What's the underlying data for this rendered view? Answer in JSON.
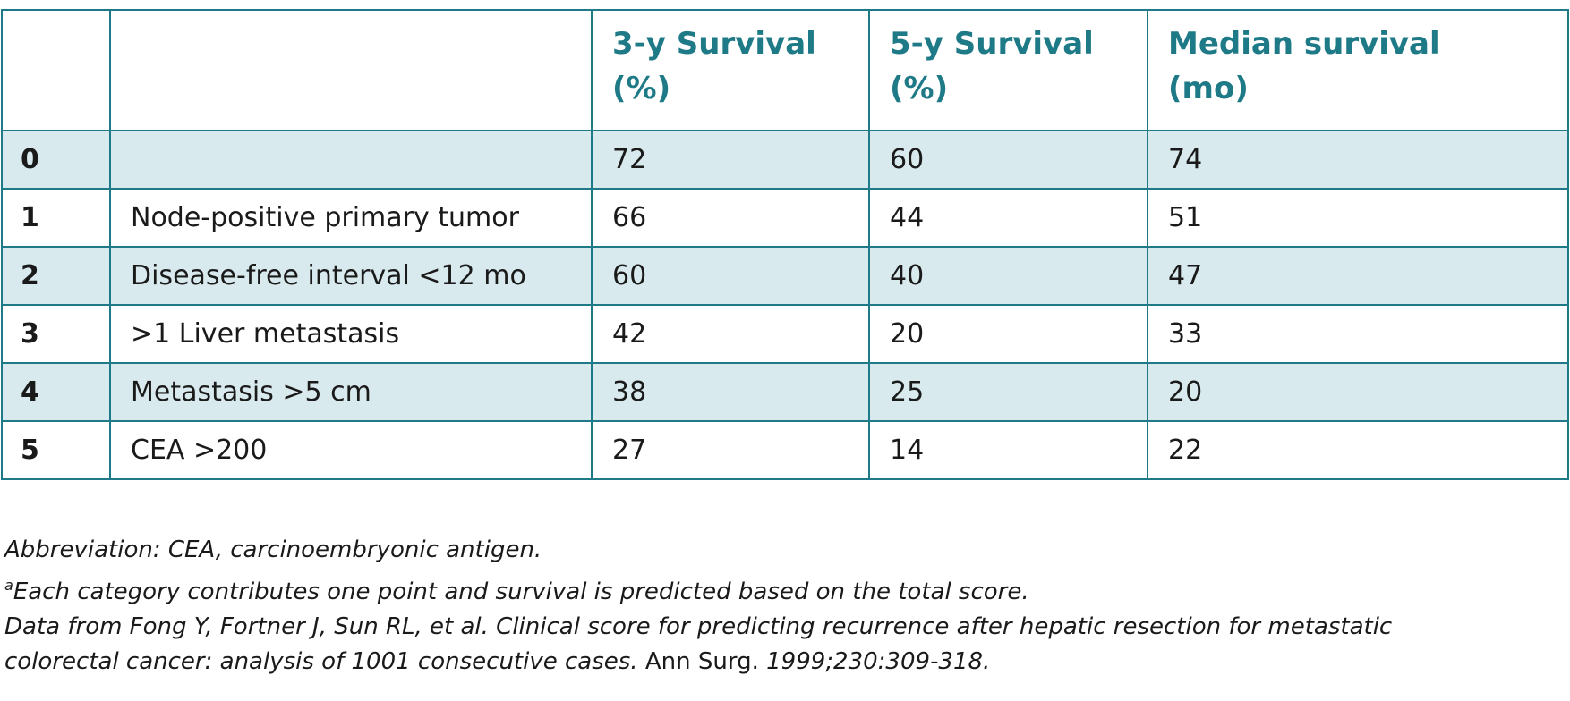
{
  "table": {
    "headers": [
      "",
      "",
      "3-y Survival (%)",
      "5-y Survival (%)",
      "Median survival (mo)"
    ],
    "header_lines": [
      [
        "",
        ""
      ],
      [
        "",
        ""
      ],
      [
        "3-y Survival",
        "(%)"
      ],
      [
        "5-y Survival",
        "(%)"
      ],
      [
        "Median survival",
        "(mo)"
      ]
    ],
    "rows": [
      {
        "score": "0",
        "factor": "",
        "y3": "72",
        "y5": "60",
        "median": "74"
      },
      {
        "score": "1",
        "factor": "Node-positive primary tumor",
        "y3": "66",
        "y5": "44",
        "median": "51"
      },
      {
        "score": "2",
        "factor": "Disease-free interval <12 mo",
        "y3": "60",
        "y5": "40",
        "median": "47"
      },
      {
        "score": "3",
        "factor": ">1 Liver metastasis",
        "y3": "42",
        "y5": "20",
        "median": "33"
      },
      {
        "score": "4",
        "factor": "Metastasis >5 cm",
        "y3": "38",
        "y5": "25",
        "median": "20"
      },
      {
        "score": "5",
        "factor": "CEA >200",
        "y3": "27",
        "y5": "14",
        "median": "22"
      }
    ]
  },
  "footnotes": {
    "abbreviation": "Abbreviation: CEA, carcinoembryonic antigen.",
    "note_a_marker": "a",
    "note_a_text": "Each category contributes one point and survival is predicted based on the total score.",
    "source_line1": "Data from Fong Y, Fortner J, Sun RL, et al. Clinical score for predicting recurrence after hepatic resection for metastatic",
    "source_line2_a": "colorectal cancer: analysis of 1001 consecutive cases.",
    "source_line2_journal": " Ann Surg. ",
    "source_line2_b": "1999;230:309-318."
  },
  "colors": {
    "border": "#1f7a87",
    "header_text": "#1f7a87",
    "shaded_row": "#d8eaee"
  }
}
